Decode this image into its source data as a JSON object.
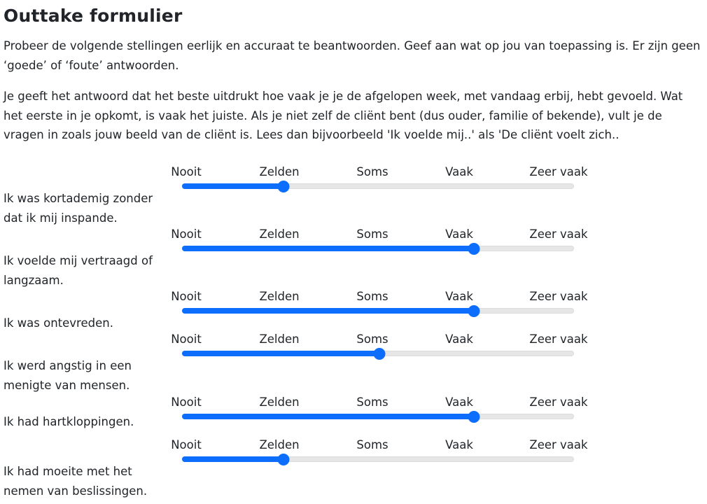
{
  "title": "Outtake formulier",
  "intro_1": "Probeer de volgende stellingen eerlijk en accuraat te beantwoorden. Geef aan wat op jou van toepassing is. Er zijn geen ‘goede’ of ‘foute’ antwoorden.",
  "intro_2": "Je geeft het antwoord dat het beste uitdrukt hoe vaak je je de afgelopen week, met vandaag erbij, hebt gevoeld. Wat het eerste in je opkomt, is vaak het juiste. Als je niet zelf de cliënt bent (dus ouder, familie of bekende), vult je de vragen in zoals jouw beeld van de cliënt is. Lees dan bijvoorbeeld 'Ik voelde mij..' als 'De cliënt voelt zich..",
  "scale": [
    "Nooit",
    "Zelden",
    "Soms",
    "Vaak",
    "Zeer vaak"
  ],
  "questions": [
    {
      "text": "Ik was kortademig zonder dat ik mij inspande.",
      "value": 1
    },
    {
      "text": "Ik voelde mij vertraagd of langzaam.",
      "value": 3
    },
    {
      "text": "Ik was ontevreden.",
      "value": 3
    },
    {
      "text": "Ik werd angstig in een menigte van mensen.",
      "value": 2
    },
    {
      "text": "Ik had hartkloppingen.",
      "value": 3
    },
    {
      "text": "Ik had moeite met het nemen van beslissingen.",
      "value": 1
    }
  ],
  "colors": {
    "accent": "#0d6efd",
    "track": "#e6e6e6"
  }
}
